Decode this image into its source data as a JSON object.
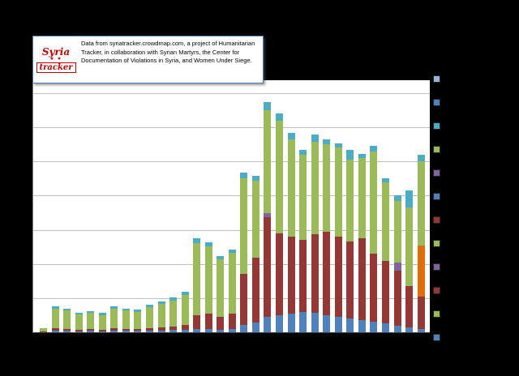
{
  "textbox": {
    "text": "Data from syriatracker.crowdmap.com, a project of Humanitarian Tracker, in collaboration with Syrian Martyrs, the Center for Documentation of Violations in Syria, and Women Under Siege."
  },
  "logo": {
    "line1": "Syria",
    "stars": "★ ★",
    "line2": "tracker"
  },
  "chart_data": {
    "type": "bar",
    "stacked": true,
    "title": "",
    "xlabel": "",
    "ylabel": "",
    "ylim": [
      0,
      700
    ],
    "gridline_interval": 100,
    "grid": true,
    "legend_position": "right",
    "series_order": [
      "blue",
      "red",
      "purple",
      "orange",
      "green",
      "teal"
    ],
    "series_colors": {
      "blue": "#4F81BD",
      "red": "#953735",
      "purple": "#8064A2",
      "orange": "#E36C0A",
      "green": "#9BBB59",
      "teal": "#4BACC6"
    },
    "bars": [
      [
        0,
        2,
        0,
        0,
        10,
        0
      ],
      [
        5,
        6,
        0,
        0,
        58,
        7
      ],
      [
        4,
        6,
        0,
        0,
        54,
        6
      ],
      [
        3,
        5,
        0,
        0,
        44,
        5
      ],
      [
        4,
        5,
        0,
        0,
        47,
        6
      ],
      [
        3,
        5,
        0,
        0,
        43,
        5
      ],
      [
        4,
        7,
        0,
        0,
        58,
        7
      ],
      [
        4,
        6,
        0,
        0,
        54,
        6
      ],
      [
        4,
        6,
        0,
        0,
        50,
        6
      ],
      [
        5,
        8,
        0,
        0,
        60,
        7
      ],
      [
        5,
        9,
        0,
        0,
        68,
        8
      ],
      [
        6,
        11,
        0,
        0,
        76,
        8
      ],
      [
        7,
        14,
        0,
        0,
        88,
        9
      ],
      [
        9,
        42,
        0,
        0,
        210,
        14
      ],
      [
        9,
        46,
        0,
        0,
        196,
        12
      ],
      [
        8,
        36,
        0,
        0,
        170,
        10
      ],
      [
        10,
        44,
        0,
        0,
        178,
        10
      ],
      [
        22,
        150,
        0,
        0,
        280,
        16
      ],
      [
        28,
        190,
        0,
        0,
        225,
        14
      ],
      [
        46,
        290,
        14,
        0,
        300,
        24
      ],
      [
        50,
        240,
        0,
        0,
        330,
        20
      ],
      [
        55,
        225,
        0,
        0,
        285,
        18
      ],
      [
        60,
        210,
        0,
        0,
        250,
        15
      ],
      [
        58,
        230,
        0,
        0,
        270,
        22
      ],
      [
        50,
        245,
        0,
        0,
        255,
        15
      ],
      [
        45,
        235,
        0,
        0,
        260,
        12
      ],
      [
        40,
        225,
        0,
        0,
        240,
        30
      ],
      [
        35,
        240,
        0,
        0,
        235,
        12
      ],
      [
        30,
        200,
        0,
        0,
        300,
        15
      ],
      [
        25,
        185,
        0,
        0,
        230,
        12
      ],
      [
        20,
        160,
        25,
        0,
        180,
        15
      ],
      [
        15,
        120,
        0,
        0,
        230,
        50
      ],
      [
        10,
        95,
        0,
        150,
        245,
        20
      ]
    ]
  },
  "legend": {
    "swatch_colors": [
      "#95B3D7",
      "#4F81BD",
      "#4BACC6",
      "#9BBB59",
      "#8064A2",
      "#4F81BD",
      "#953735",
      "#9BBB59",
      "#8064A2",
      "#953735",
      "#9BBB59",
      "#4F81BD"
    ]
  }
}
